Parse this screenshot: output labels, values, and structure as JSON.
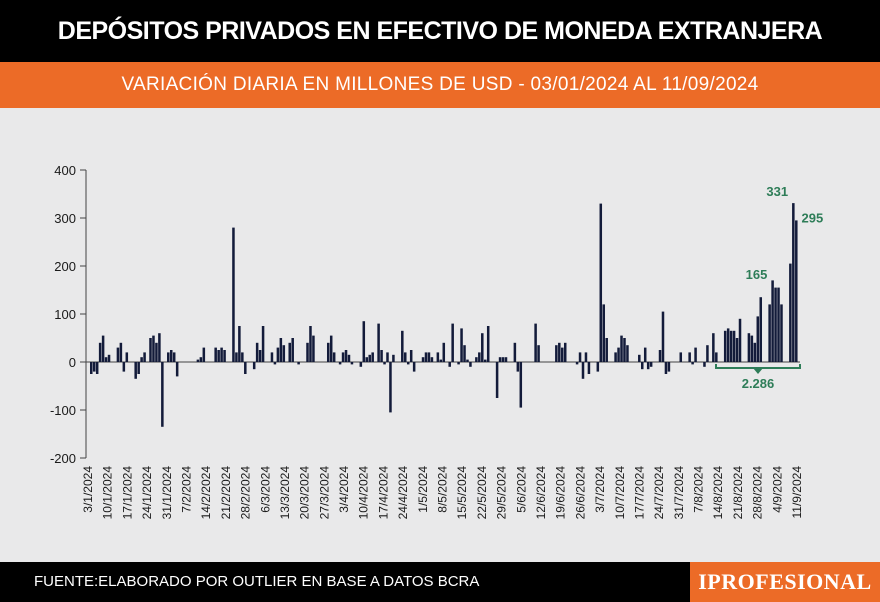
{
  "header": {
    "title": "DEPÓSITOS PRIVADOS EN EFECTIVO DE MONEDA EXTRANJERA",
    "subtitle": "VARIACIÓN DIARIA EN MILLONES DE USD - 03/01/2024 AL 11/09/2024"
  },
  "footer": {
    "source": "FUENTE:ELABORADO POR OUTLIER EN BASE A DATOS BCRA",
    "brand": "IPROFESIONAL"
  },
  "colors": {
    "bar": "#131b3a",
    "accent": "#ec6b27",
    "annotation": "#2e7d58",
    "background": "#e9e9ea"
  },
  "chart_data": {
    "type": "bar",
    "title": "DEPÓSITOS PRIVADOS EN EFECTIVO DE MONEDA EXTRANJERA",
    "subtitle": "VARIACIÓN DIARIA EN MILLONES DE USD - 03/01/2024 AL 11/09/2024",
    "xlabel": "",
    "ylabel": "",
    "ylim": [
      -200,
      400
    ],
    "yticks": [
      400,
      300,
      200,
      100,
      0,
      -100,
      -200
    ],
    "xtick_labels": [
      "3/1/2024",
      "10/1/2024",
      "17/1/2024",
      "24/1/2024",
      "31/1/2024",
      "7/2/2024",
      "14/2/2024",
      "21/2/2024",
      "28/2/2024",
      "6/3/2024",
      "13/3/2024",
      "20/3/2024",
      "27/3/2024",
      "3/4/2024",
      "10/4/2024",
      "17/4/2024",
      "24/4/2024",
      "1/5/2024",
      "8/5/2024",
      "15/5/2024",
      "22/5/2024",
      "29/5/2024",
      "5/6/2024",
      "12/6/2024",
      "19/6/2024",
      "26/6/2024",
      "3/7/2024",
      "10/7/2024",
      "17/7/2024",
      "24/7/2024",
      "31/7/2024",
      "7/8/2024",
      "14/8/2024",
      "21/8/2024",
      "28/8/2024",
      "4/9/2024",
      "11/9/2024"
    ],
    "values": [
      -25,
      -20,
      -25,
      40,
      55,
      10,
      15,
      0,
      0,
      30,
      40,
      -20,
      20,
      0,
      0,
      -35,
      -25,
      10,
      20,
      0,
      50,
      55,
      40,
      60,
      -135,
      0,
      20,
      25,
      20,
      -30,
      0,
      0,
      0,
      0,
      0,
      0,
      5,
      10,
      30,
      0,
      0,
      0,
      30,
      25,
      30,
      25,
      0,
      0,
      280,
      20,
      75,
      20,
      -25,
      0,
      0,
      -15,
      40,
      25,
      75,
      0,
      0,
      20,
      -5,
      30,
      50,
      35,
      0,
      40,
      50,
      0,
      -5,
      0,
      0,
      40,
      75,
      55,
      0,
      0,
      0,
      0,
      40,
      55,
      20,
      0,
      -5,
      20,
      25,
      15,
      -5,
      0,
      0,
      -10,
      85,
      10,
      15,
      20,
      0,
      80,
      25,
      -5,
      20,
      -105,
      15,
      0,
      0,
      65,
      20,
      -5,
      25,
      -20,
      0,
      0,
      10,
      20,
      20,
      10,
      0,
      20,
      5,
      40,
      0,
      -10,
      80,
      0,
      -5,
      70,
      35,
      5,
      -10,
      0,
      10,
      20,
      60,
      5,
      75,
      0,
      0,
      -75,
      10,
      10,
      10,
      0,
      0,
      40,
      -20,
      -95,
      0,
      0,
      0,
      0,
      80,
      35,
      0,
      0,
      0,
      0,
      0,
      35,
      40,
      30,
      40,
      0,
      0,
      0,
      -5,
      20,
      -35,
      20,
      -25,
      0,
      0,
      -20,
      330,
      120,
      50,
      0,
      0,
      20,
      30,
      55,
      50,
      35,
      0,
      0,
      0,
      15,
      -15,
      30,
      -15,
      -10,
      0,
      0,
      25,
      105,
      -25,
      -20,
      0,
      0,
      0,
      20,
      0,
      0,
      20,
      -5,
      30,
      0,
      0,
      -10,
      35,
      0,
      60,
      20,
      0,
      0,
      65,
      70,
      65,
      65,
      50,
      90,
      0,
      0,
      60,
      55,
      40,
      95,
      135,
      0,
      0,
      120,
      170,
      155,
      155,
      120,
      0,
      0,
      205,
      331,
      295
    ],
    "annotations": [
      {
        "label": "331",
        "value": 331
      },
      {
        "label": "295",
        "value": 295
      },
      {
        "label": "165",
        "value": 165
      },
      {
        "label": "2.286",
        "note": "suma del período 14/8/2024 - 11/9/2024"
      }
    ]
  }
}
